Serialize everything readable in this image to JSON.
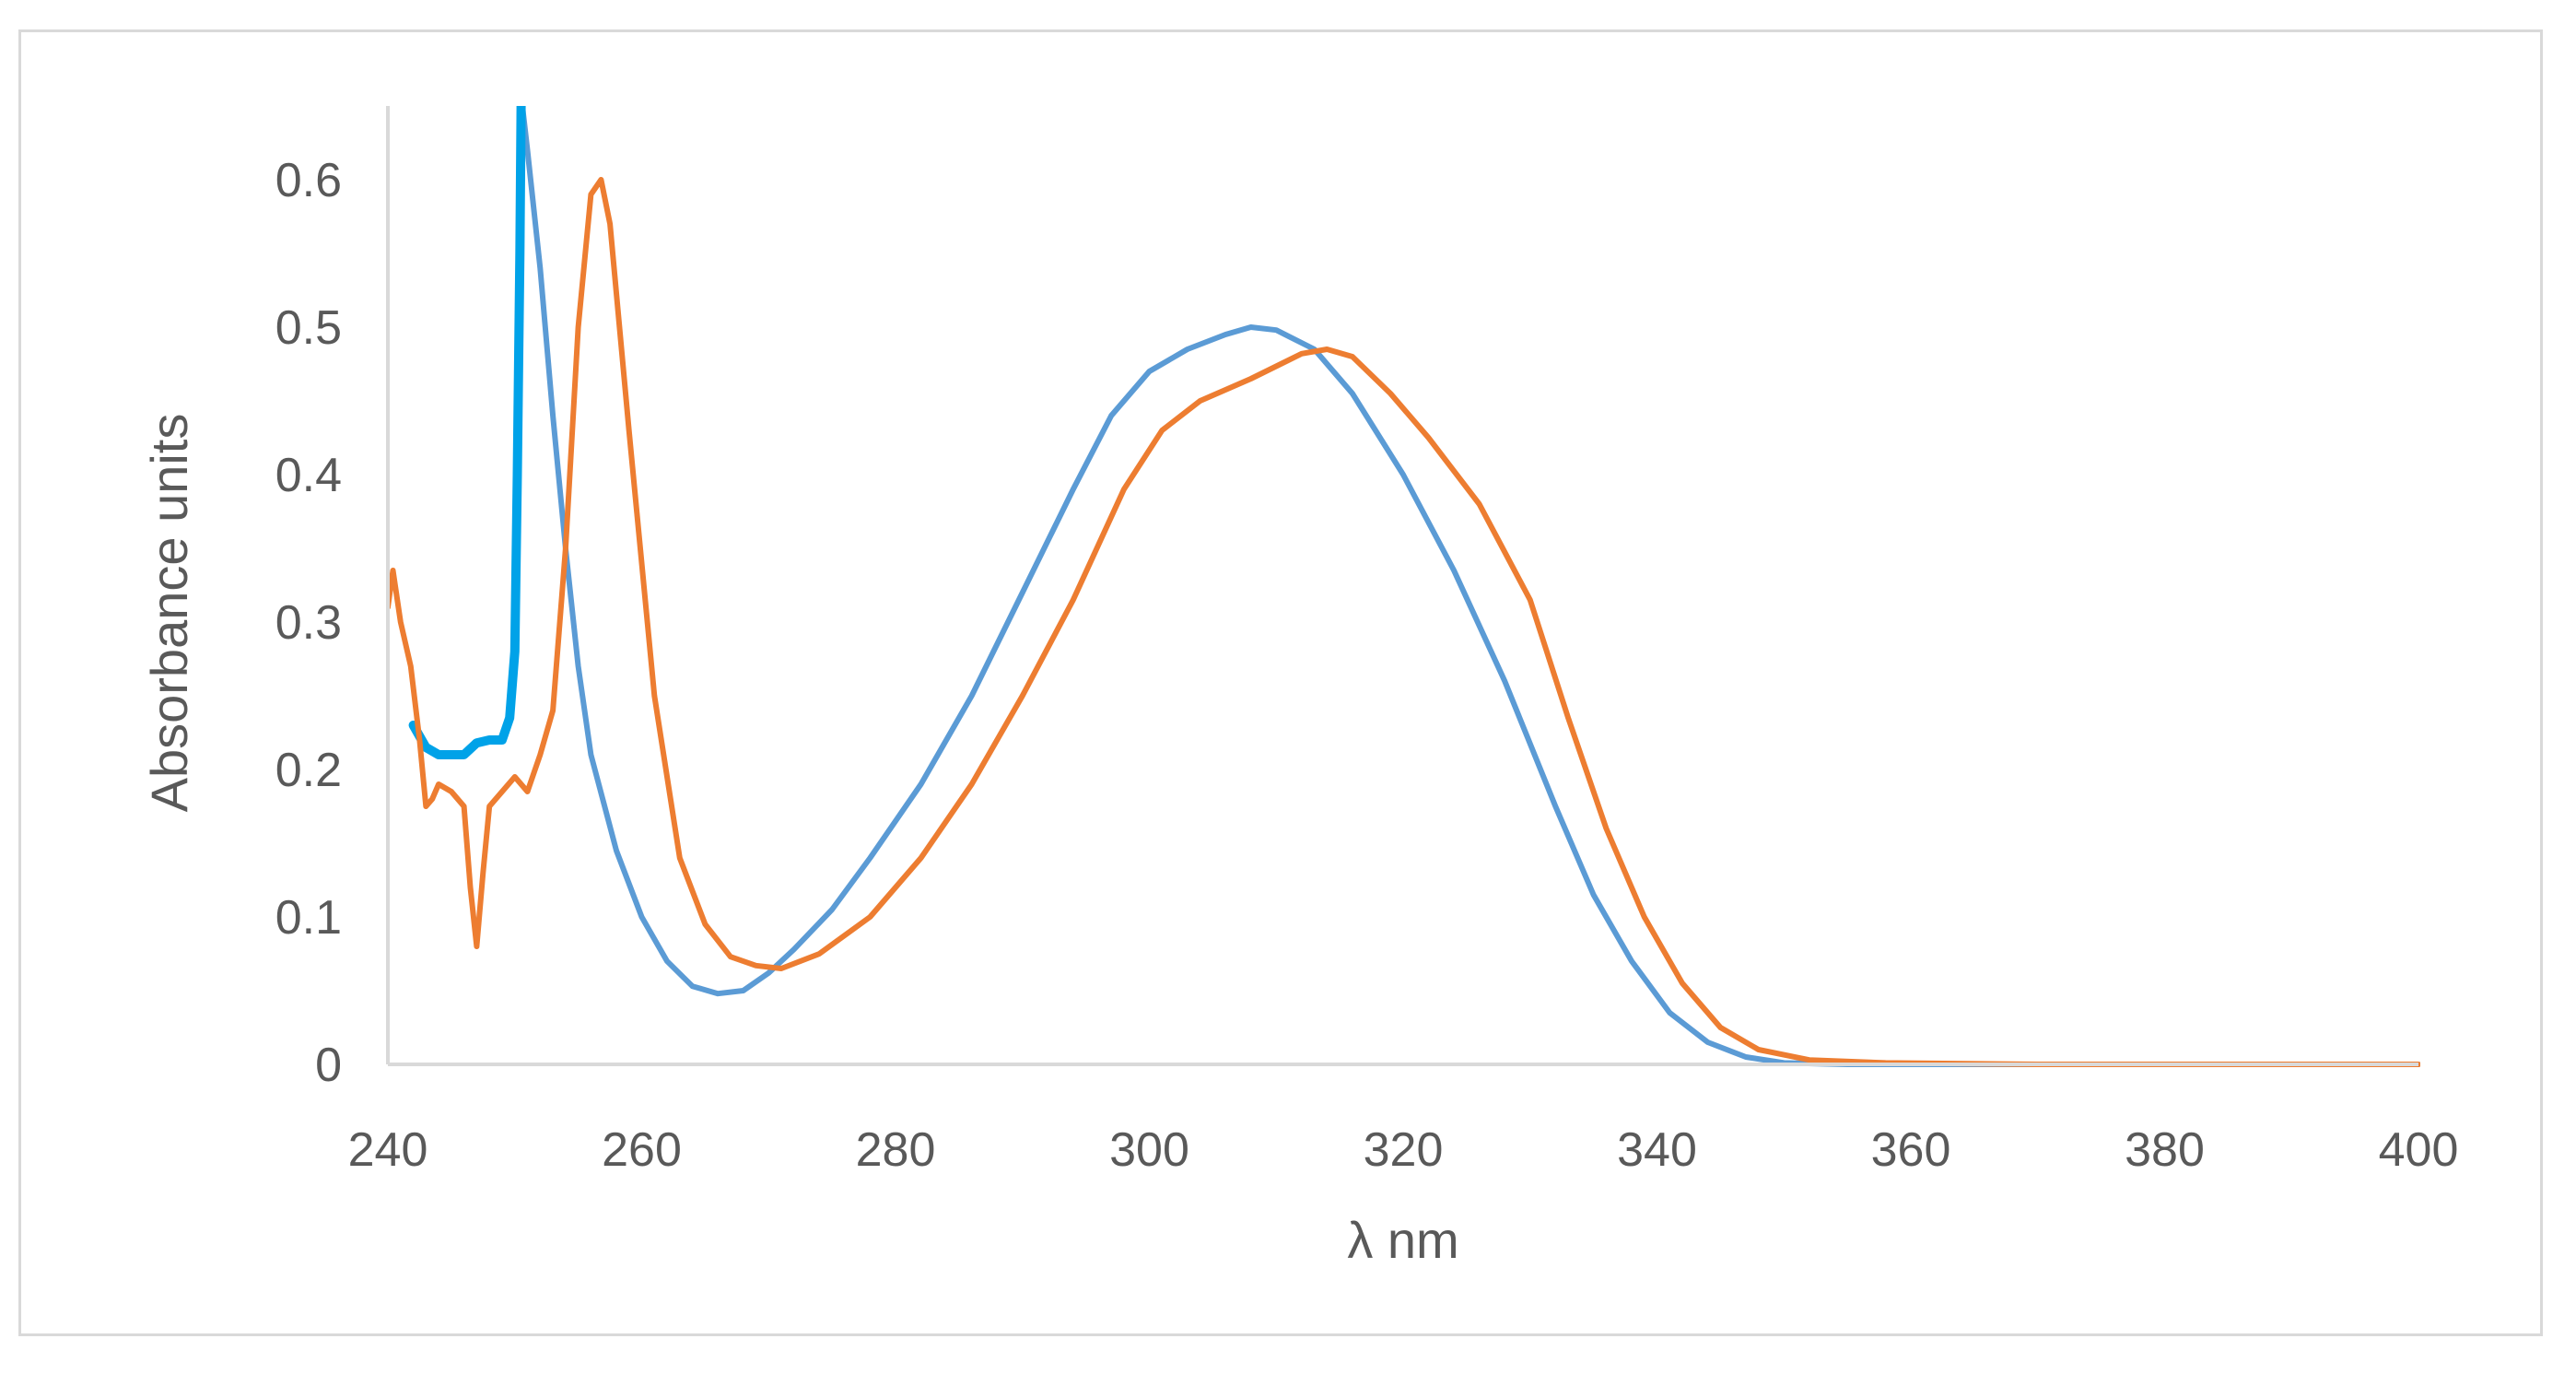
{
  "chart_data": {
    "type": "line",
    "title": "",
    "xlabel": "λ nm",
    "ylabel": "Absorbance units",
    "xlim": [
      240,
      400
    ],
    "ylim": [
      0,
      0.65
    ],
    "x_ticks": [
      240,
      260,
      280,
      300,
      320,
      340,
      360,
      380,
      400
    ],
    "y_ticks": [
      0,
      0.1,
      0.2,
      0.3,
      0.4,
      0.5,
      0.6
    ],
    "y_tick_labels": [
      "0",
      "0.1",
      "0.2",
      "0.3",
      "0.4",
      "0.5",
      "0.6"
    ],
    "grid": false,
    "legend": "none",
    "series": [
      {
        "color": "#5b9bd5",
        "points": [
          [
            250.6,
            0.65
          ],
          [
            251,
            0.62
          ],
          [
            252,
            0.54
          ],
          [
            253,
            0.44
          ],
          [
            254,
            0.35
          ],
          [
            255,
            0.27
          ],
          [
            256,
            0.21
          ],
          [
            258,
            0.145
          ],
          [
            260,
            0.1
          ],
          [
            262,
            0.07
          ],
          [
            264,
            0.053
          ],
          [
            266,
            0.048
          ],
          [
            268,
            0.05
          ],
          [
            270,
            0.062
          ],
          [
            272,
            0.078
          ],
          [
            275,
            0.105
          ],
          [
            278,
            0.14
          ],
          [
            282,
            0.19
          ],
          [
            286,
            0.25
          ],
          [
            290,
            0.32
          ],
          [
            294,
            0.39
          ],
          [
            297,
            0.44
          ],
          [
            300,
            0.47
          ],
          [
            303,
            0.485
          ],
          [
            306,
            0.495
          ],
          [
            308,
            0.5
          ],
          [
            310,
            0.498
          ],
          [
            313,
            0.485
          ],
          [
            316,
            0.455
          ],
          [
            320,
            0.4
          ],
          [
            324,
            0.335
          ],
          [
            328,
            0.26
          ],
          [
            332,
            0.175
          ],
          [
            335,
            0.115
          ],
          [
            338,
            0.07
          ],
          [
            341,
            0.035
          ],
          [
            344,
            0.015
          ],
          [
            347,
            0.005
          ],
          [
            350,
            0.001
          ],
          [
            355,
            0
          ],
          [
            400,
            0
          ]
        ]
      },
      {
        "color": "#00a2e8",
        "points": [
          [
            242,
            0.23
          ],
          [
            243,
            0.215
          ],
          [
            244,
            0.21
          ],
          [
            246,
            0.21
          ],
          [
            247,
            0.218
          ],
          [
            248,
            0.22
          ],
          [
            249,
            0.22
          ],
          [
            249.6,
            0.235
          ],
          [
            250,
            0.28
          ],
          [
            250.2,
            0.4
          ],
          [
            250.4,
            0.55
          ],
          [
            250.5,
            0.65
          ]
        ]
      },
      {
        "color": "#ed7d31",
        "points": [
          [
            240,
            0.31
          ],
          [
            240.4,
            0.335
          ],
          [
            241,
            0.3
          ],
          [
            241.8,
            0.27
          ],
          [
            242.5,
            0.22
          ],
          [
            243,
            0.175
          ],
          [
            243.5,
            0.18
          ],
          [
            244,
            0.19
          ],
          [
            245,
            0.185
          ],
          [
            246,
            0.175
          ],
          [
            246.5,
            0.12
          ],
          [
            247,
            0.08
          ],
          [
            247.5,
            0.13
          ],
          [
            248,
            0.175
          ],
          [
            249,
            0.185
          ],
          [
            250,
            0.195
          ],
          [
            251,
            0.185
          ],
          [
            252,
            0.21
          ],
          [
            253,
            0.24
          ],
          [
            254,
            0.35
          ],
          [
            255,
            0.5
          ],
          [
            256,
            0.59
          ],
          [
            256.8,
            0.6
          ],
          [
            257.5,
            0.57
          ],
          [
            259,
            0.43
          ],
          [
            261,
            0.25
          ],
          [
            263,
            0.14
          ],
          [
            265,
            0.095
          ],
          [
            267,
            0.073
          ],
          [
            269,
            0.067
          ],
          [
            271,
            0.065
          ],
          [
            274,
            0.075
          ],
          [
            278,
            0.1
          ],
          [
            282,
            0.14
          ],
          [
            286,
            0.19
          ],
          [
            290,
            0.25
          ],
          [
            294,
            0.315
          ],
          [
            298,
            0.39
          ],
          [
            301,
            0.43
          ],
          [
            304,
            0.45
          ],
          [
            308,
            0.465
          ],
          [
            312,
            0.482
          ],
          [
            314,
            0.485
          ],
          [
            316,
            0.48
          ],
          [
            319,
            0.455
          ],
          [
            322,
            0.425
          ],
          [
            326,
            0.38
          ],
          [
            330,
            0.315
          ],
          [
            333,
            0.235
          ],
          [
            336,
            0.16
          ],
          [
            339,
            0.1
          ],
          [
            342,
            0.055
          ],
          [
            345,
            0.025
          ],
          [
            348,
            0.01
          ],
          [
            352,
            0.003
          ],
          [
            358,
            0.001
          ],
          [
            370,
            0
          ],
          [
            400,
            0
          ]
        ]
      }
    ]
  }
}
